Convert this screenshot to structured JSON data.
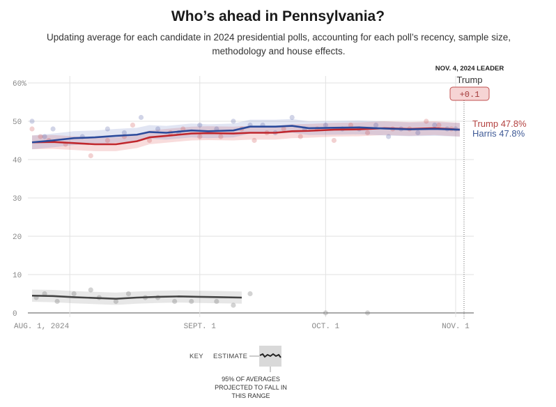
{
  "header": {
    "title": "Who’s ahead in Pennsylvania?",
    "subtitle": "Updating average for each candidate in 2024 presidential polls, accounting for each poll’s recency, sample size, methodology and house effects."
  },
  "leader_box": {
    "heading": "NOV. 4, 2024 LEADER",
    "name": "Trump",
    "margin": "+0.1"
  },
  "key": {
    "label": "KEY",
    "estimate_label": "ESTIMATE",
    "range_note": "95% OF AVERAGES PROJECTED TO FALL IN THIS RANGE"
  },
  "colors": {
    "trump": "#c0272d",
    "harris": "#2b4a9b",
    "other": "#444444"
  },
  "chart_data": {
    "type": "line",
    "title": "Who’s ahead in Pennsylvania?",
    "xlabel": "",
    "ylabel": "",
    "ylim": [
      0,
      60
    ],
    "yticks": [
      0,
      10,
      20,
      30,
      40,
      50,
      60
    ],
    "ytick_labels": [
      "0",
      "10",
      "20",
      "30",
      "40",
      "50",
      "60%"
    ],
    "xticks": [
      "2024-08-01",
      "2024-09-01",
      "2024-10-01",
      "2024-11-01"
    ],
    "xtick_labels": [
      "AUG. 1, 2024",
      "SEPT. 1",
      "OCT. 1",
      "NOV. 1"
    ],
    "xrange": [
      "2024-07-23",
      "2024-11-04"
    ],
    "grid": true,
    "end_labels": [
      {
        "name": "Trump",
        "text": "Trump 47.8%"
      },
      {
        "name": "Harris",
        "text": "Harris 47.8%"
      }
    ],
    "series": [
      {
        "name": "Harris",
        "color": "#2b4a9b",
        "x": [
          0,
          5,
          10,
          15,
          20,
          25,
          28,
          32,
          38,
          42,
          48,
          52,
          58,
          62,
          66,
          72,
          78,
          84,
          90,
          96,
          102
        ],
        "values": [
          44.5,
          45.0,
          45.6,
          45.8,
          46.2,
          46.5,
          47.2,
          47.0,
          47.6,
          47.4,
          47.6,
          48.6,
          48.6,
          48.8,
          48.2,
          48.3,
          48.4,
          48.1,
          47.9,
          48.0,
          47.8
        ],
        "band": 1.8
      },
      {
        "name": "Trump",
        "color": "#c0272d",
        "x": [
          0,
          5,
          10,
          15,
          20,
          25,
          28,
          32,
          38,
          42,
          48,
          52,
          58,
          62,
          66,
          72,
          78,
          84,
          90,
          96,
          102
        ],
        "values": [
          44.5,
          44.6,
          44.3,
          44.0,
          44.0,
          44.8,
          45.8,
          46.2,
          46.8,
          46.9,
          46.8,
          47.0,
          47.0,
          47.4,
          47.5,
          47.8,
          47.9,
          48.2,
          48.0,
          48.2,
          47.8
        ],
        "band": 1.8
      },
      {
        "name": "Other",
        "color": "#444444",
        "x": [
          0,
          5,
          10,
          15,
          20,
          25,
          30,
          35,
          40,
          45,
          50
        ],
        "values": [
          4.5,
          4.4,
          4.1,
          3.9,
          3.7,
          4.0,
          4.2,
          4.3,
          4.2,
          4.1,
          4.0
        ],
        "band": 1.6
      }
    ],
    "polls": {
      "Harris": [
        [
          0,
          50
        ],
        [
          3,
          46
        ],
        [
          5,
          48
        ],
        [
          12,
          46
        ],
        [
          18,
          48
        ],
        [
          22,
          47
        ],
        [
          26,
          51
        ],
        [
          30,
          48
        ],
        [
          35,
          47
        ],
        [
          40,
          49
        ],
        [
          44,
          48
        ],
        [
          48,
          50
        ],
        [
          52,
          49
        ],
        [
          55,
          49
        ],
        [
          58,
          47
        ],
        [
          62,
          51
        ],
        [
          65,
          48
        ],
        [
          70,
          49
        ],
        [
          74,
          48
        ],
        [
          78,
          48
        ],
        [
          82,
          49
        ],
        [
          85,
          46
        ],
        [
          88,
          48
        ],
        [
          92,
          47
        ],
        [
          96,
          49
        ],
        [
          99,
          48
        ],
        [
          101,
          48
        ]
      ],
      "Trump": [
        [
          0,
          48
        ],
        [
          2,
          46
        ],
        [
          4,
          45
        ],
        [
          8,
          44
        ],
        [
          14,
          41
        ],
        [
          18,
          45
        ],
        [
          22,
          46
        ],
        [
          24,
          49
        ],
        [
          28,
          45
        ],
        [
          33,
          47
        ],
        [
          36,
          48
        ],
        [
          40,
          46
        ],
        [
          45,
          46
        ],
        [
          50,
          48
        ],
        [
          53,
          45
        ],
        [
          56,
          47
        ],
        [
          60,
          48
        ],
        [
          64,
          46
        ],
        [
          68,
          48
        ],
        [
          72,
          45
        ],
        [
          76,
          49
        ],
        [
          80,
          47
        ],
        [
          86,
          48
        ],
        [
          90,
          48
        ],
        [
          94,
          50
        ],
        [
          97,
          49
        ],
        [
          100,
          48
        ]
      ],
      "Other": [
        [
          1,
          4
        ],
        [
          3,
          5
        ],
        [
          6,
          3
        ],
        [
          10,
          5
        ],
        [
          14,
          6
        ],
        [
          16,
          4
        ],
        [
          20,
          3
        ],
        [
          23,
          5
        ],
        [
          27,
          4
        ],
        [
          30,
          4
        ],
        [
          34,
          3
        ],
        [
          38,
          3
        ],
        [
          44,
          3
        ],
        [
          48,
          2
        ],
        [
          52,
          5
        ],
        [
          70,
          0
        ],
        [
          80,
          0
        ]
      ]
    }
  }
}
